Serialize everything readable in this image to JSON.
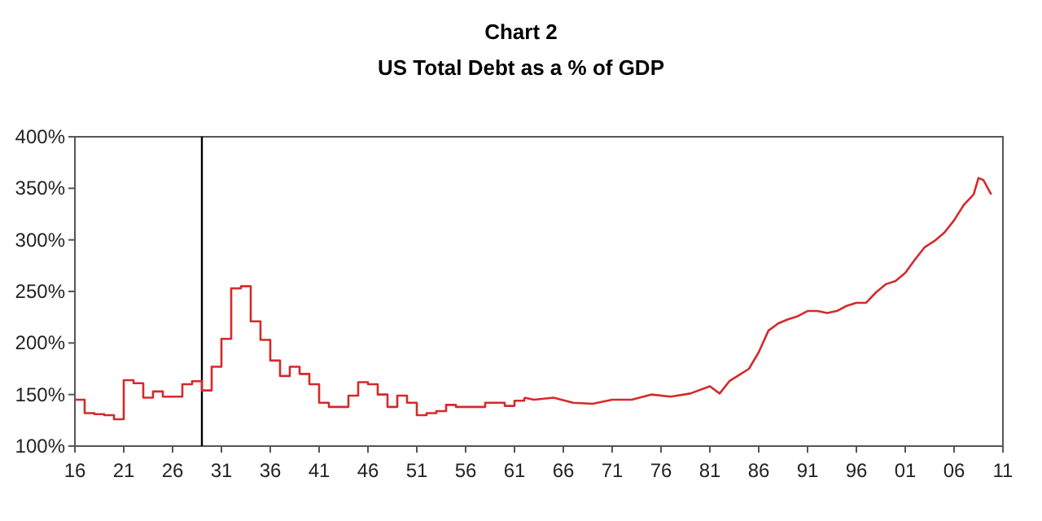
{
  "chart_data": {
    "type": "step",
    "title": "Chart 2",
    "subtitle": "US Total Debt as a % of GDP",
    "xlim": [
      1916,
      2011
    ],
    "xticks": [
      {
        "value": 1916,
        "label": "16"
      },
      {
        "value": 1921,
        "label": "21"
      },
      {
        "value": 1926,
        "label": "26"
      },
      {
        "value": 1931,
        "label": "31"
      },
      {
        "value": 1936,
        "label": "36"
      },
      {
        "value": 1941,
        "label": "41"
      },
      {
        "value": 1946,
        "label": "46"
      },
      {
        "value": 1951,
        "label": "51"
      },
      {
        "value": 1956,
        "label": "56"
      },
      {
        "value": 1961,
        "label": "61"
      },
      {
        "value": 1966,
        "label": "66"
      },
      {
        "value": 1971,
        "label": "71"
      },
      {
        "value": 1976,
        "label": "76"
      },
      {
        "value": 1981,
        "label": "81"
      },
      {
        "value": 1986,
        "label": "86"
      },
      {
        "value": 1991,
        "label": "91"
      },
      {
        "value": 1996,
        "label": "96"
      },
      {
        "value": 2001,
        "label": "01"
      },
      {
        "value": 2006,
        "label": "06"
      },
      {
        "value": 2011,
        "label": "11"
      }
    ],
    "ylim": [
      100,
      400
    ],
    "yticks": [
      {
        "value": 100,
        "label": "100%"
      },
      {
        "value": 150,
        "label": "150%"
      },
      {
        "value": 200,
        "label": "200%"
      },
      {
        "value": 250,
        "label": "250%"
      },
      {
        "value": 300,
        "label": "300%"
      },
      {
        "value": 350,
        "label": "350%"
      },
      {
        "value": 400,
        "label": "400%"
      }
    ],
    "grid": false,
    "ref_lines": [
      {
        "axis": "x",
        "value": 1929,
        "color": "#000000"
      }
    ],
    "series": [
      {
        "color": "#d42a2a",
        "x": [
          1916,
          1917,
          1918,
          1919,
          1920,
          1921,
          1922,
          1923,
          1924,
          1925,
          1926,
          1927,
          1928,
          1929,
          1930,
          1931,
          1932,
          1933,
          1934,
          1935,
          1936,
          1937,
          1938,
          1939,
          1940,
          1941,
          1942,
          1943,
          1944,
          1945,
          1946,
          1947,
          1948,
          1949,
          1950,
          1951,
          1952,
          1953,
          1954,
          1955,
          1956,
          1957,
          1958,
          1959,
          1960,
          1961,
          1962
        ],
        "values": [
          145,
          132,
          131,
          130,
          126,
          164,
          161,
          147,
          153,
          148,
          148,
          160,
          163,
          154,
          177,
          204,
          253,
          255,
          221,
          203,
          183,
          168,
          177,
          170,
          160,
          142,
          138,
          138,
          149,
          162,
          160,
          150,
          138,
          149,
          142,
          130,
          132,
          134,
          140,
          138,
          138,
          138,
          142,
          142,
          139,
          144,
          147
        ]
      },
      {
        "type": "line",
        "color": "#d42a2a",
        "x": [
          1962,
          1963,
          1965,
          1967,
          1969,
          1971,
          1973,
          1975,
          1977,
          1979,
          1981,
          1982,
          1983,
          1984,
          1985,
          1986,
          1987,
          1988,
          1989,
          1990,
          1991,
          1992,
          1993,
          1994,
          1995,
          1996,
          1997,
          1998,
          1999,
          2000,
          2001,
          2002,
          2003,
          2004,
          2005,
          2006,
          2007,
          2008,
          2008.5,
          2009,
          2009.8
        ],
        "values": [
          147,
          145,
          147,
          142,
          141,
          145,
          145,
          150,
          148,
          151,
          158,
          151,
          163,
          169,
          175,
          191,
          212,
          219,
          223,
          226,
          231,
          231,
          229,
          231,
          236,
          239,
          239,
          249,
          257,
          260,
          268,
          281,
          293,
          299,
          307,
          319,
          334,
          344,
          360,
          358,
          344
        ]
      }
    ]
  }
}
